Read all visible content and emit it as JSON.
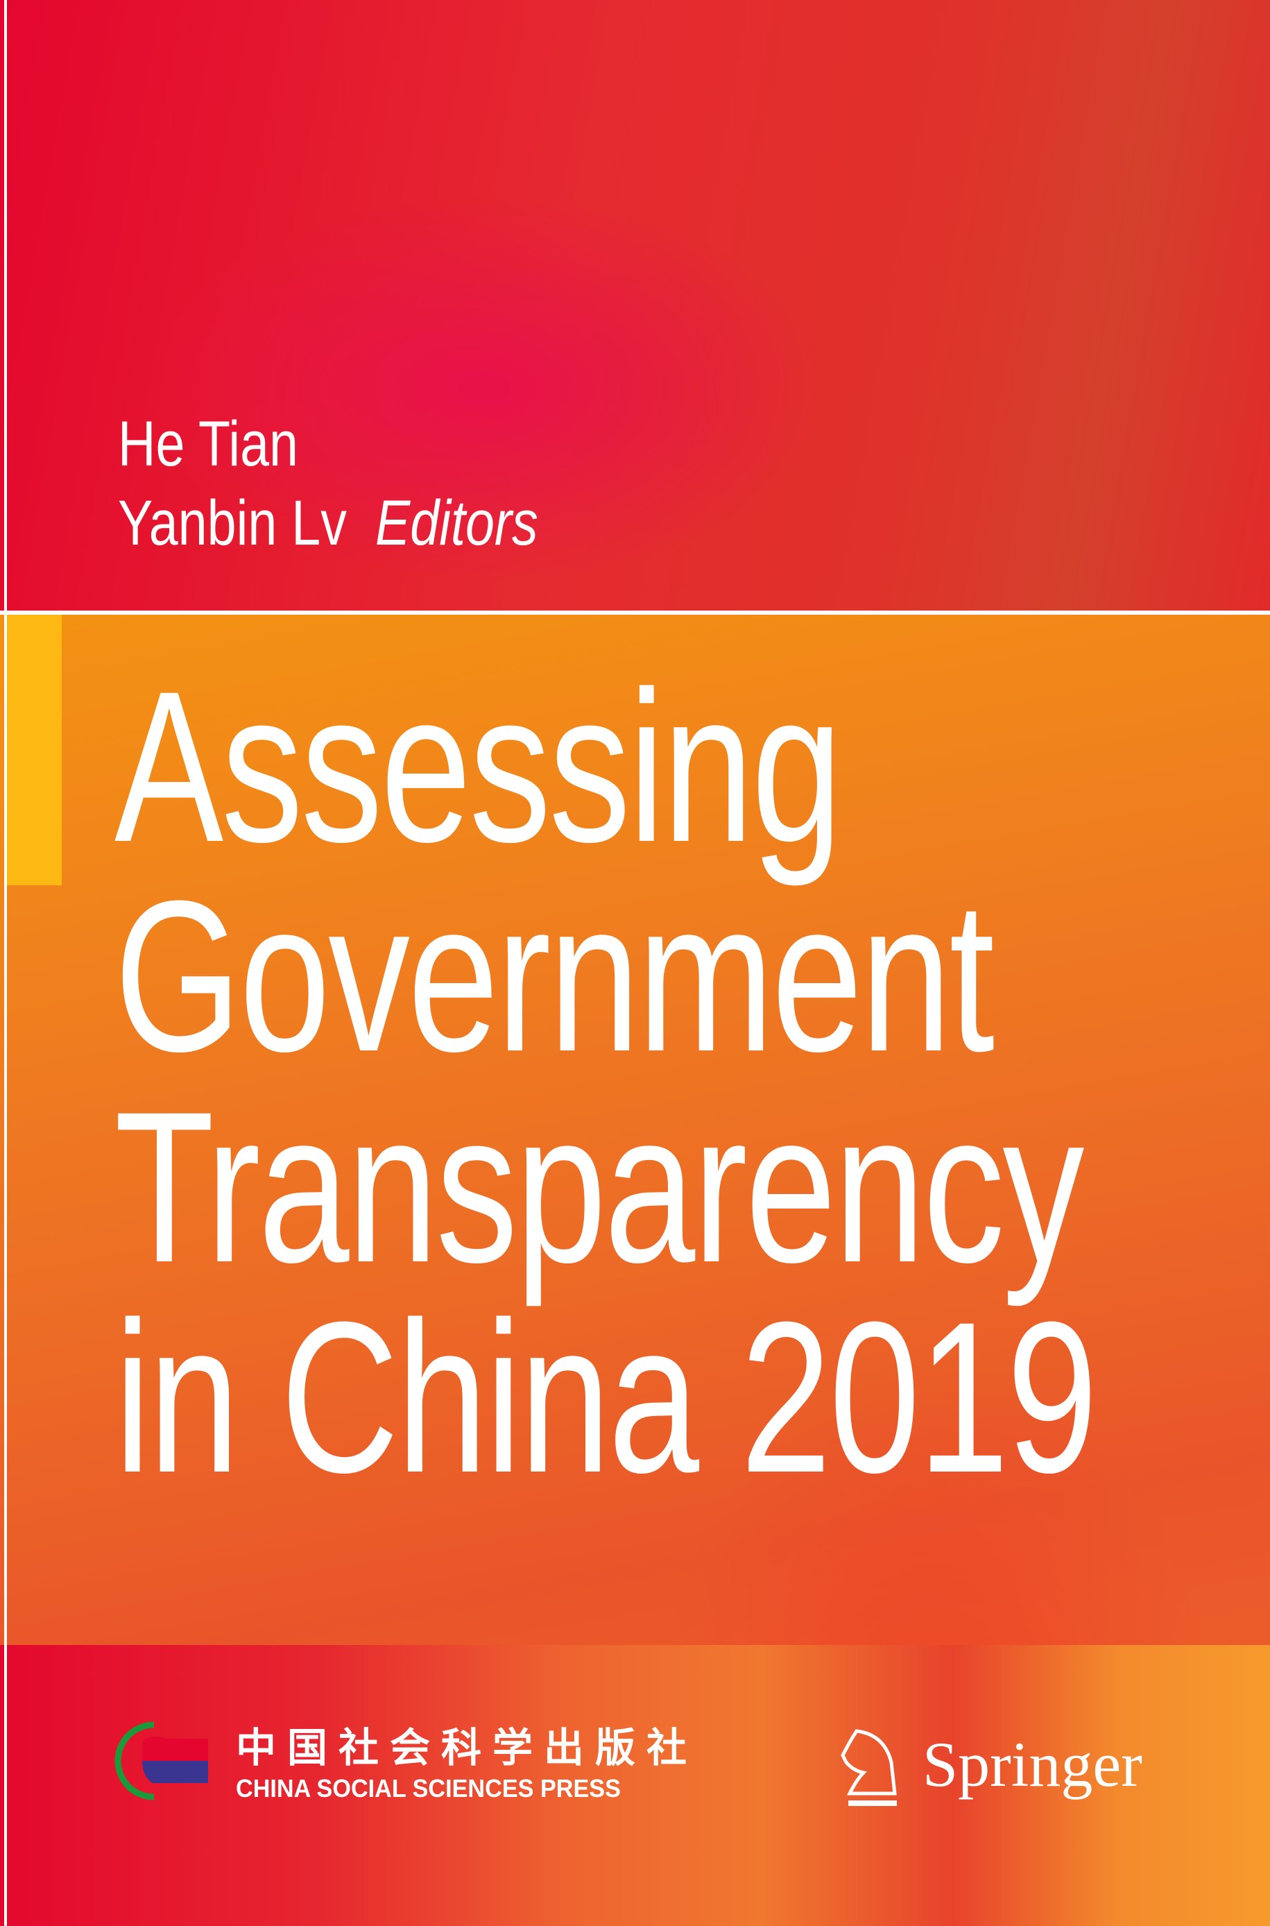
{
  "cover": {
    "authors": [
      "He Tian",
      "Yanbin Lv"
    ],
    "editors_label": "Editors",
    "title_lines": [
      "Assessing",
      "Government",
      "Transparency",
      "in China 2019"
    ],
    "publishers": {
      "cssp_chinese": "中国社会科学出版社",
      "cssp_english": "CHINA SOCIAL SCIENCES PRESS",
      "springer": "Springer"
    },
    "colors": {
      "top_band": "#e4062e",
      "middle_band": "#f0801e",
      "accent_block": "#fdb813",
      "text": "#ffffff"
    }
  }
}
